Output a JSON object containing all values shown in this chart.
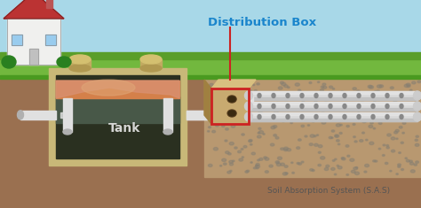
{
  "bg_sky": "#a8d8e8",
  "bg_grass_light": "#72b83e",
  "bg_grass_dark": "#5a9e2a",
  "bg_soil": "#9a7050",
  "bg_soil_dark": "#7a5535",
  "bg_gravel": "#b89870",
  "title": "Distribution Box",
  "label_tank": "Tank",
  "label_sas": "Soil Absorption System (S.A.S)",
  "title_color": "#1a85cc",
  "label_color": "#e8e8e8",
  "sas_label_color": "#555555",
  "tank_outline": "#c8b878",
  "tank_fill_dark": "#2a3020",
  "tank_fill_mid": "#3a4030",
  "tank_fill_liquid": "#c87858",
  "tank_fill_orange": "#d4804a",
  "pipe_color": "#e0e0e0",
  "pipe_shadow": "#b0b0b0",
  "dbox_fill": "#c8aa70",
  "dbox_face": "#c0a060",
  "dbox_outline": "#cc2222",
  "arrow_line_color": "#cc2222",
  "house_wall": "#f0f0ee",
  "house_roof": "#bb3333",
  "grass_line": "#4a9a20",
  "perf_pipe_color": "#d8d8d8",
  "perf_dot_color": "#888888",
  "gravel_dot": "#888070"
}
